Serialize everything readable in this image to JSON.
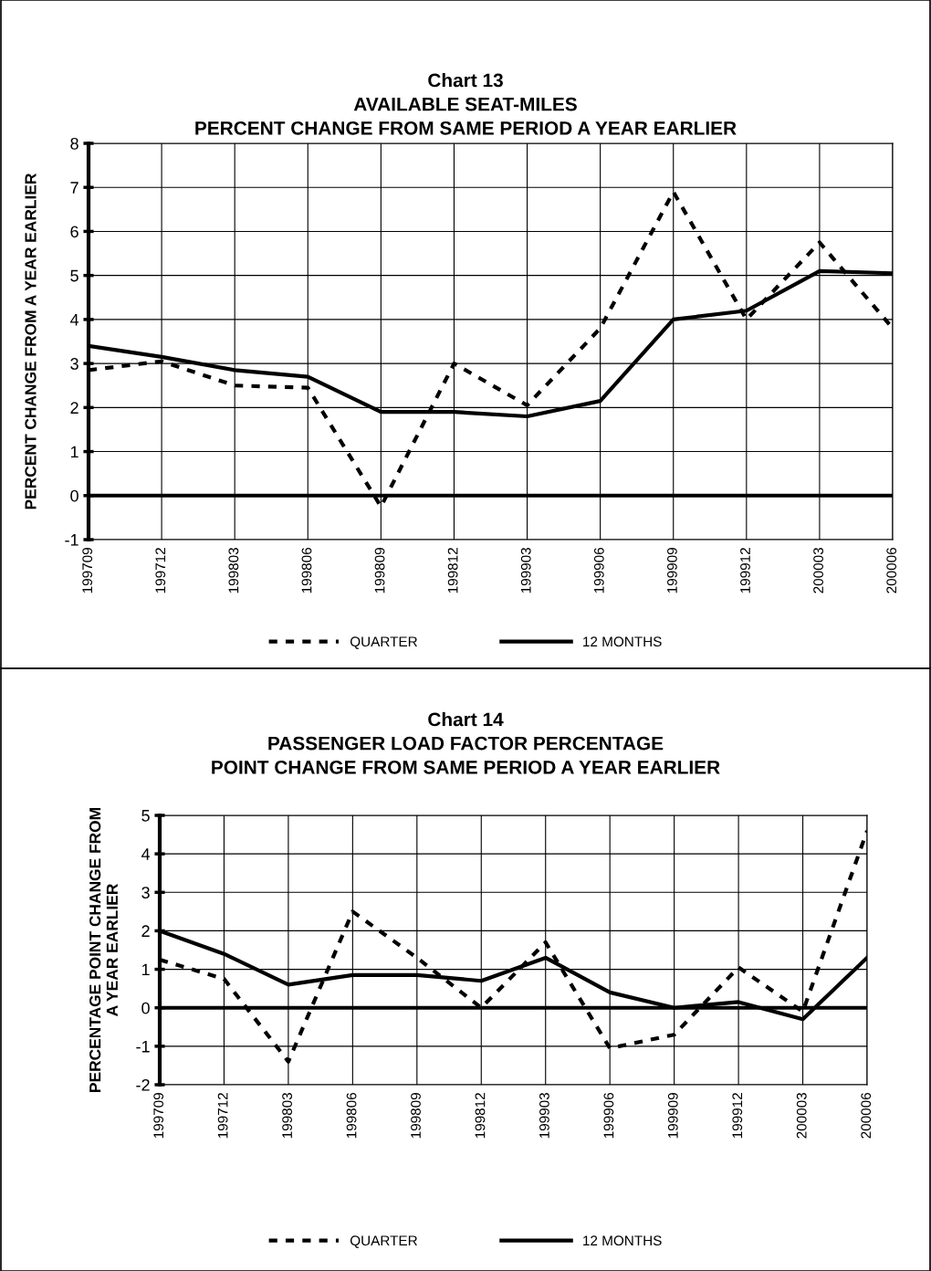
{
  "chart_data": [
    {
      "type": "line",
      "title": "Chart 13\nAVAILABLE SEAT-MILES\nPERCENT CHANGE FROM SAME PERIOD A YEAR EARLIER",
      "ylabel": "PERCENT CHANGE FROM A YEAR EARLIER",
      "categories": [
        "199709",
        "199712",
        "199803",
        "199806",
        "199809",
        "199812",
        "199903",
        "199906",
        "199909",
        "199912",
        "200003",
        "200006"
      ],
      "series": [
        {
          "name": "QUARTER",
          "color": "#000000",
          "line_style": "dashed",
          "values": [
            2.85,
            3.05,
            2.5,
            2.45,
            -0.25,
            3.0,
            2.05,
            3.8,
            6.9,
            4.0,
            5.75,
            3.8
          ]
        },
        {
          "name": "12 MONTHS",
          "color": "#000000",
          "line_style": "solid",
          "values": [
            3.4,
            3.15,
            2.85,
            2.7,
            1.9,
            1.9,
            1.8,
            2.15,
            4.0,
            4.2,
            5.1,
            5.05
          ]
        }
      ],
      "ylim": [
        -1,
        8
      ],
      "yticks": [
        -1,
        0,
        1,
        2,
        3,
        4,
        5,
        6,
        7,
        8
      ],
      "grid": true,
      "legend": "bottom",
      "ref_lines": [
        {
          "axis": "y",
          "value": 0,
          "color": "#000000"
        }
      ]
    },
    {
      "type": "line",
      "title": "Chart 14\nPASSENGER LOAD FACTOR PERCENTAGE\nPOINT CHANGE FROM SAME PERIOD A YEAR EARLIER",
      "ylabel": "PERCENTAGE POINT CHANGE FROM\nA YEAR EARLIER",
      "categories": [
        "199709",
        "199712",
        "199803",
        "199806",
        "199809",
        "199812",
        "199903",
        "199906",
        "199909",
        "199912",
        "200003",
        "200006"
      ],
      "series": [
        {
          "name": "QUARTER",
          "color": "#000000",
          "line_style": "dashed",
          "values": [
            1.25,
            0.75,
            -1.4,
            2.5,
            1.3,
            0.0,
            1.7,
            -1.05,
            -0.7,
            1.05,
            -0.1,
            4.6
          ]
        },
        {
          "name": "12 MONTHS",
          "color": "#000000",
          "line_style": "solid",
          "values": [
            2.0,
            1.4,
            0.6,
            0.85,
            0.85,
            0.7,
            1.3,
            0.4,
            0.0,
            0.15,
            -0.3,
            1.3
          ]
        }
      ],
      "ylim": [
        -2,
        5
      ],
      "yticks": [
        -2,
        -1,
        0,
        1,
        2,
        3,
        4,
        5
      ],
      "grid": true,
      "legend": "bottom",
      "ref_lines": [
        {
          "axis": "y",
          "value": 0,
          "color": "#000000"
        }
      ]
    }
  ]
}
